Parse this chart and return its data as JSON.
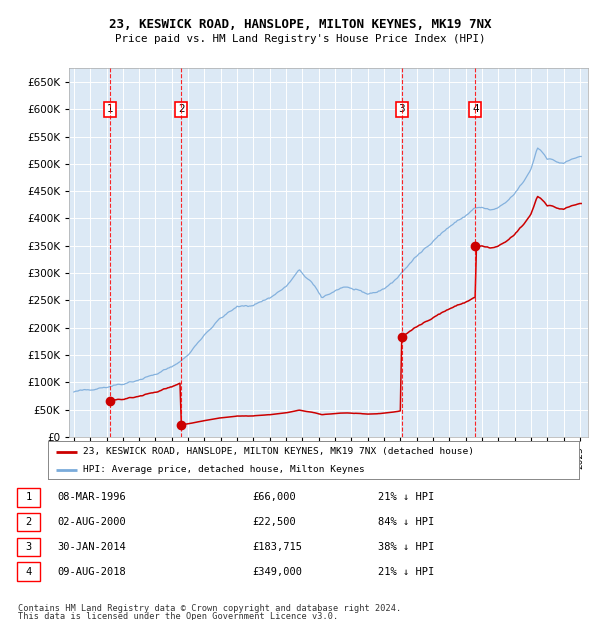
{
  "title1": "23, KESWICK ROAD, HANSLOPE, MILTON KEYNES, MK19 7NX",
  "title2": "Price paid vs. HM Land Registry's House Price Index (HPI)",
  "ylim": [
    0,
    675000
  ],
  "yticks": [
    0,
    50000,
    100000,
    150000,
    200000,
    250000,
    300000,
    350000,
    400000,
    450000,
    500000,
    550000,
    600000,
    650000
  ],
  "plot_bg": "#dce9f5",
  "grid_color": "#ffffff",
  "sale_years": [
    1996.19,
    2000.58,
    2014.08,
    2018.6
  ],
  "sale_prices": [
    66000,
    22500,
    183715,
    349000
  ],
  "sale_labels": [
    "1",
    "2",
    "3",
    "4"
  ],
  "legend_line_label": "23, KESWICK ROAD, HANSLOPE, MILTON KEYNES, MK19 7NX (detached house)",
  "legend_hpi_label": "HPI: Average price, detached house, Milton Keynes",
  "footer1": "Contains HM Land Registry data © Crown copyright and database right 2024.",
  "footer2": "This data is licensed under the Open Government Licence v3.0.",
  "table_rows": [
    [
      "1",
      "08-MAR-1996",
      "£66,000",
      "21% ↓ HPI"
    ],
    [
      "2",
      "02-AUG-2000",
      "£22,500",
      "84% ↓ HPI"
    ],
    [
      "3",
      "30-JAN-2014",
      "£183,715",
      "38% ↓ HPI"
    ],
    [
      "4",
      "09-AUG-2018",
      "£349,000",
      "21% ↓ HPI"
    ]
  ],
  "red_color": "#cc0000",
  "blue_color": "#7aabdb",
  "xlim": [
    1993.7,
    2025.5
  ],
  "xtick_years": [
    1994,
    1995,
    1996,
    1997,
    1998,
    1999,
    2000,
    2001,
    2002,
    2003,
    2004,
    2005,
    2006,
    2007,
    2008,
    2009,
    2010,
    2011,
    2012,
    2013,
    2014,
    2015,
    2016,
    2017,
    2018,
    2019,
    2020,
    2021,
    2022,
    2023,
    2024,
    2025
  ]
}
